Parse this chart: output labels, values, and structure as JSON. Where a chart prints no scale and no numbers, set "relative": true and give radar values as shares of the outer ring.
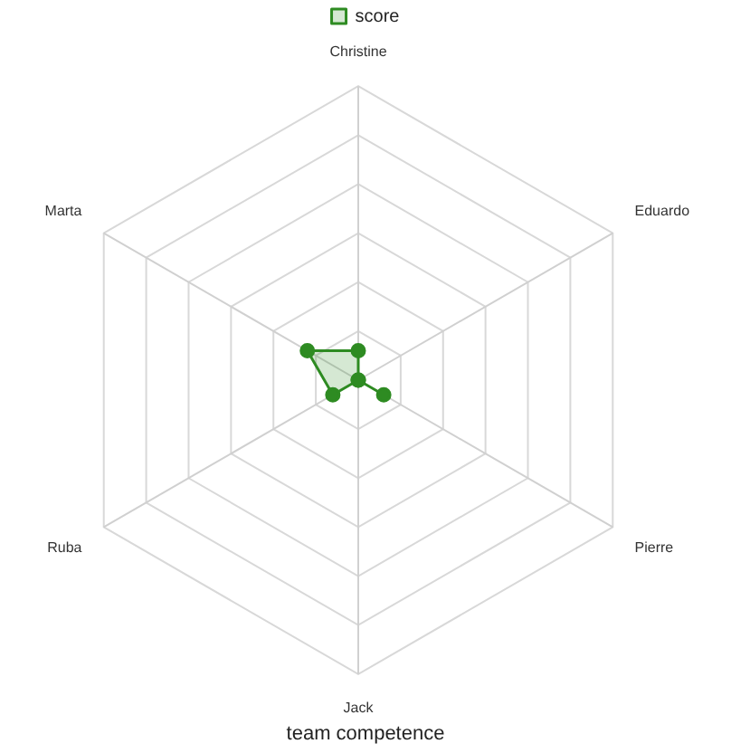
{
  "chart_data": {
    "type": "radar",
    "title": "team competence",
    "categories": [
      "Christine",
      "Eduardo",
      "Pierre",
      "Jack",
      "Ruba",
      "Marta"
    ],
    "relative": true,
    "legend": "top",
    "grid": true,
    "marker": "circle",
    "series": [
      {
        "name": "score",
        "color": "#2e8b22",
        "values": [
          0.1,
          0,
          0.1,
          0,
          0.1,
          0.2
        ]
      }
    ]
  }
}
